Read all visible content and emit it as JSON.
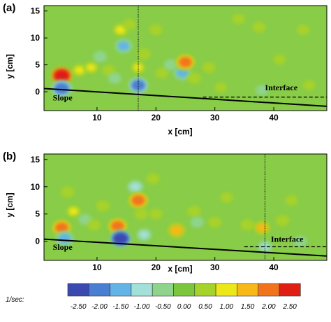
{
  "chart_data": [
    {
      "type": "heatmap",
      "panel_label": "(a)",
      "xlabel": "x [cm]",
      "ylabel": "y [cm]",
      "xlim": [
        1,
        49
      ],
      "ylim": [
        -3.5,
        16
      ],
      "x_ticks": [
        10,
        20,
        30,
        40
      ],
      "y_ticks": [
        0,
        5,
        10,
        15
      ],
      "slope_line": {
        "x": [
          1,
          49
        ],
        "y": [
          0.6,
          -2.7
        ]
      },
      "interface_line": {
        "x": [
          28,
          49
        ],
        "y": [
          -1.0,
          -1.0
        ]
      },
      "vertical_line_x": 17,
      "annotations": [
        {
          "text": "Slope",
          "x": 2.5,
          "y": -1.6
        },
        {
          "text": "Interface",
          "x": 38.5,
          "y": 0.3
        }
      ],
      "field_features": [
        {
          "x": 4,
          "y": 3.0,
          "value": 2.5
        },
        {
          "x": 4,
          "y": 0.6,
          "value": -2.2
        },
        {
          "x": 7,
          "y": 4.0,
          "value": 0.9
        },
        {
          "x": 9,
          "y": 4.5,
          "value": 0.8
        },
        {
          "x": 10.5,
          "y": 6.5,
          "value": -0.7
        },
        {
          "x": 12,
          "y": 4.0,
          "value": 0.6
        },
        {
          "x": 13,
          "y": 2.5,
          "value": -0.6
        },
        {
          "x": 14,
          "y": 11.5,
          "value": 1.0
        },
        {
          "x": 14.5,
          "y": 8.5,
          "value": -1.4
        },
        {
          "x": 15.5,
          "y": 12.5,
          "value": 0.6
        },
        {
          "x": 17,
          "y": 1.2,
          "value": -2.0
        },
        {
          "x": 17,
          "y": 4.5,
          "value": 0.8
        },
        {
          "x": 18,
          "y": 7.0,
          "value": 0.7
        },
        {
          "x": 20,
          "y": 11.5,
          "value": 0.6
        },
        {
          "x": 21,
          "y": 3.5,
          "value": 0.6
        },
        {
          "x": 22.5,
          "y": 5.0,
          "value": -0.6
        },
        {
          "x": 24.5,
          "y": 3.5,
          "value": -1.5
        },
        {
          "x": 25,
          "y": 5.5,
          "value": 1.9
        },
        {
          "x": 26.5,
          "y": 2.5,
          "value": 0.7
        },
        {
          "x": 29,
          "y": 4.5,
          "value": 0.6
        },
        {
          "x": 31,
          "y": 0.8,
          "value": 0.4
        },
        {
          "x": 34,
          "y": 13.5,
          "value": 0.5
        },
        {
          "x": 37.5,
          "y": 12.0,
          "value": 0.6
        },
        {
          "x": 38,
          "y": 0.3,
          "value": -0.5
        },
        {
          "x": 41,
          "y": 6.0,
          "value": 0.4
        },
        {
          "x": 45,
          "y": 11.5,
          "value": 0.5
        },
        {
          "x": 46,
          "y": 1.2,
          "value": 0.4
        }
      ]
    },
    {
      "type": "heatmap",
      "panel_label": "(b)",
      "xlabel": "x [cm]",
      "ylabel": "y [cm]",
      "xlim": [
        1,
        49
      ],
      "ylim": [
        -3.5,
        16
      ],
      "x_ticks": [
        10,
        20,
        30,
        40
      ],
      "y_ticks": [
        0,
        5,
        10,
        15
      ],
      "slope_line": {
        "x": [
          1,
          49
        ],
        "y": [
          0.4,
          -2.7
        ]
      },
      "interface_line": {
        "x": [
          35,
          49
        ],
        "y": [
          -1.0,
          -1.0
        ]
      },
      "vertical_line_x": 38.5,
      "annotations": [
        {
          "text": "Slope",
          "x": 2.5,
          "y": -1.6
        },
        {
          "text": "Interface",
          "x": 39.5,
          "y": -0.1
        }
      ],
      "field_features": [
        {
          "x": 4,
          "y": 2.5,
          "value": 1.9
        },
        {
          "x": 4.5,
          "y": 0.5,
          "value": -1.6
        },
        {
          "x": 5,
          "y": 9.0,
          "value": 0.6
        },
        {
          "x": 6,
          "y": 5.5,
          "value": 0.8
        },
        {
          "x": 8,
          "y": 4.0,
          "value": -0.6
        },
        {
          "x": 9.5,
          "y": 3.0,
          "value": 0.6
        },
        {
          "x": 11,
          "y": 6.5,
          "value": 0.7
        },
        {
          "x": 13.5,
          "y": 2.8,
          "value": 1.9
        },
        {
          "x": 14,
          "y": 0.5,
          "value": -2.3
        },
        {
          "x": 16.5,
          "y": 10.0,
          "value": -1.2
        },
        {
          "x": 17,
          "y": 7.5,
          "value": 2.0
        },
        {
          "x": 17.5,
          "y": 5.0,
          "value": 0.7
        },
        {
          "x": 18,
          "y": 1.2,
          "value": -1.0
        },
        {
          "x": 19.5,
          "y": 11.5,
          "value": 0.6
        },
        {
          "x": 20,
          "y": 5.0,
          "value": 0.6
        },
        {
          "x": 23.5,
          "y": 2.0,
          "value": 1.6
        },
        {
          "x": 26.5,
          "y": 5.5,
          "value": 0.7
        },
        {
          "x": 27,
          "y": 3.5,
          "value": -0.6
        },
        {
          "x": 30,
          "y": 3.5,
          "value": 0.6
        },
        {
          "x": 32,
          "y": 8.0,
          "value": 0.5
        },
        {
          "x": 35.5,
          "y": 3.0,
          "value": 0.7
        },
        {
          "x": 38,
          "y": 2.5,
          "value": 1.3
        },
        {
          "x": 38.5,
          "y": -1.0,
          "value": -0.8
        },
        {
          "x": 41.5,
          "y": 3.8,
          "value": 0.7
        },
        {
          "x": 43,
          "y": 7.5,
          "value": 0.5
        },
        {
          "x": 44.5,
          "y": 0.0,
          "value": -0.6
        }
      ]
    }
  ],
  "colorbar": {
    "label": "1/sec:",
    "ticks": [
      "-2.50",
      "-2.00",
      "-1.50",
      "-1.00",
      "-0.50",
      "0.00",
      "0.50",
      "1.00",
      "1.50",
      "2.00",
      "2.50"
    ],
    "colors": [
      "#3a48b0",
      "#4a7ed2",
      "#62b4e6",
      "#a2e0d8",
      "#8fd48c",
      "#7cc63c",
      "#a6d22c",
      "#ece818",
      "#f7b818",
      "#f1741c",
      "#df1e14"
    ],
    "background_color": "#88cc48",
    "line_color": "#000000"
  }
}
